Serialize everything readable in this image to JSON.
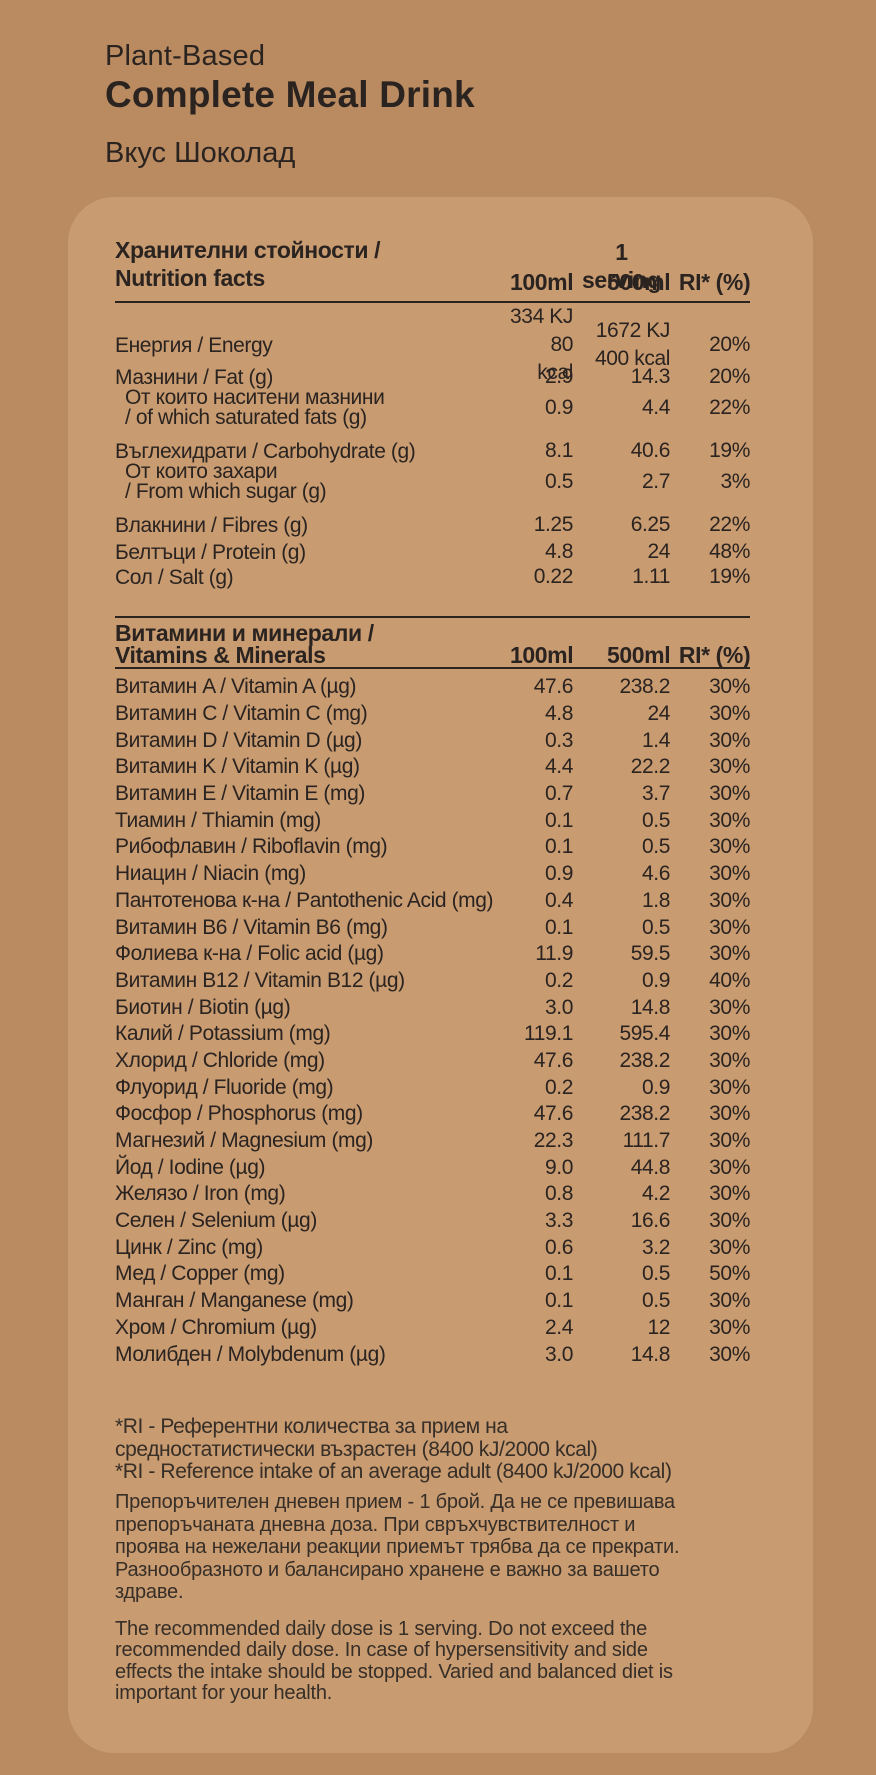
{
  "theme": {
    "background_color": "#ba8b60",
    "panel_color": "#c89b71",
    "text_color": "#2a2320",
    "footer_text_color": "#362e27"
  },
  "header": {
    "line1": "Plant-Based",
    "line2": "Complete Meal Drink",
    "flavor": "Вкус Шоколад"
  },
  "nutrition_table": {
    "title_bg": "Хранителни стойности /",
    "title_en": "Nutrition facts",
    "serving_label": "1 serving",
    "columns": [
      "100ml",
      "500ml",
      "RI* (%)"
    ],
    "rows": [
      {
        "label": [
          "Енергия / Energy"
        ],
        "lines": [
          [
            "334 KJ",
            "1672 KJ",
            ""
          ],
          [
            "80 kcal",
            "400 kcal",
            "20%"
          ]
        ]
      },
      {
        "label": [
          "Мазнини / Fat (g)"
        ],
        "lines": [
          [
            "2.9",
            "14.3",
            "20%"
          ]
        ]
      },
      {
        "label": [
          "От които наситени мазнини",
          "/ of which saturated fats (g)"
        ],
        "indent": true,
        "lines": [
          [
            "0.9",
            "4.4",
            "22%"
          ]
        ]
      },
      {
        "label": [
          "Въглехидрати / Carbohydrate (g)"
        ],
        "lines": [
          [
            "8.1",
            "40.6",
            "19%"
          ]
        ]
      },
      {
        "label": [
          "От които захари",
          "/ From which sugar (g)"
        ],
        "indent": true,
        "lines": [
          [
            "0.5",
            "2.7",
            "3%"
          ]
        ]
      },
      {
        "label": [
          "Влакнини / Fibres (g)"
        ],
        "lines": [
          [
            "1.25",
            "6.25",
            "22%"
          ]
        ]
      },
      {
        "label": [
          "Белтъци / Protein (g)"
        ],
        "lines": [
          [
            "4.8",
            "24",
            "48%"
          ]
        ]
      },
      {
        "label": [
          "Сол / Salt (g)"
        ],
        "lines": [
          [
            "0.22",
            "1.11",
            "19%"
          ]
        ]
      }
    ]
  },
  "vitamins_table": {
    "title_bg": "Витамини и минерали /",
    "title_en": "Vitamins & Minerals",
    "columns": [
      "100ml",
      "500ml",
      "RI* (%)"
    ],
    "rows": [
      {
        "label": "Витамин A / Vitamin A (µg)",
        "v100": "47.6",
        "v500": "238.2",
        "ri": "30%"
      },
      {
        "label": "Витамин C / Vitamin C (mg)",
        "v100": "4.8",
        "v500": "24",
        "ri": "30%"
      },
      {
        "label": "Витамин D / Vitamin D (µg)",
        "v100": "0.3",
        "v500": "1.4",
        "ri": "30%"
      },
      {
        "label": "Витамин K / Vitamin K (µg)",
        "v100": "4.4",
        "v500": "22.2",
        "ri": "30%"
      },
      {
        "label": "Витамин E / Vitamin E (mg)",
        "v100": "0.7",
        "v500": "3.7",
        "ri": "30%"
      },
      {
        "label": "Тиамин / Thiamin (mg)",
        "v100": "0.1",
        "v500": "0.5",
        "ri": "30%"
      },
      {
        "label": "Рибофлавин / Riboflavin (mg)",
        "v100": "0.1",
        "v500": "0.5",
        "ri": "30%"
      },
      {
        "label": "Ниацин / Niacin (mg)",
        "v100": "0.9",
        "v500": "4.6",
        "ri": "30%"
      },
      {
        "label": "Пантотенова к-на / Pantothenic Acid (mg)",
        "v100": "0.4",
        "v500": "1.8",
        "ri": "30%"
      },
      {
        "label": "Витамин B6 / Vitamin B6 (mg)",
        "v100": "0.1",
        "v500": "0.5",
        "ri": "30%"
      },
      {
        "label": "Фолиева к-на / Folic acid (µg)",
        "v100": "11.9",
        "v500": "59.5",
        "ri": "30%"
      },
      {
        "label": "Витамин B12 / Vitamin B12 (µg)",
        "v100": "0.2",
        "v500": "0.9",
        "ri": "40%"
      },
      {
        "label": "Биотин / Biotin (µg)",
        "v100": "3.0",
        "v500": "14.8",
        "ri": "30%"
      },
      {
        "label": "Калий / Potassium (mg)",
        "v100": "119.1",
        "v500": "595.4",
        "ri": "30%"
      },
      {
        "label": "Хлорид / Chloride (mg)",
        "v100": "47.6",
        "v500": "238.2",
        "ri": "30%"
      },
      {
        "label": "Флуорид / Fluoride (mg)",
        "v100": "0.2",
        "v500": "0.9",
        "ri": "30%"
      },
      {
        "label": "Фосфор / Phosphorus (mg)",
        "v100": "47.6",
        "v500": "238.2",
        "ri": "30%"
      },
      {
        "label": "Магнезий / Magnesium (mg)",
        "v100": "22.3",
        "v500": "111.7",
        "ri": "30%"
      },
      {
        "label": "Йод / Iodine (µg)",
        "v100": "9.0",
        "v500": "44.8",
        "ri": "30%"
      },
      {
        "label": "Желязо / Iron (mg)",
        "v100": "0.8",
        "v500": "4.2",
        "ri": "30%"
      },
      {
        "label": "Селен / Selenium (µg)",
        "v100": "3.3",
        "v500": "16.6",
        "ri": "30%"
      },
      {
        "label": "Цинк / Zinc (mg)",
        "v100": "0.6",
        "v500": "3.2",
        "ri": "30%"
      },
      {
        "label": "Мед / Copper (mg)",
        "v100": "0.1",
        "v500": "0.5",
        "ri": "50%"
      },
      {
        "label": "Манган / Manganese (mg)",
        "v100": "0.1",
        "v500": "0.5",
        "ri": "30%"
      },
      {
        "label": "Хром / Chromium (µg)",
        "v100": "2.4",
        "v500": "12",
        "ri": "30%"
      },
      {
        "label": "Молибден / Molybdenum (µg)",
        "v100": "3.0",
        "v500": "14.8",
        "ri": "30%"
      }
    ]
  },
  "footnotes": {
    "lines": [
      "*RI -  Референтни количества за прием на",
      "средностатистически възрастен (8400 kJ/2000 kcal)",
      "*RI - Reference intake of an average adult (8400 kJ/2000 kcal)"
    ]
  },
  "disclaimer_bg": {
    "lines": [
      "Препоръчителен дневен прием - 1 брой. Да не се превишава",
      "препоръчаната дневна доза. При свръхчувствителност и",
      "проява на нежелани реакции приемът трябва да се прекрати.",
      "Разнообразното и балансирано хранене е важно за вашето",
      "здраве."
    ]
  },
  "disclaimer_en": {
    "lines": [
      "The recommended daily dose is 1 serving. Do not exceed the",
      "recommended daily dose. In case of hypersensitivity and side",
      "effects the intake should be stopped. Varied and balanced diet is",
      "important for your health."
    ]
  }
}
